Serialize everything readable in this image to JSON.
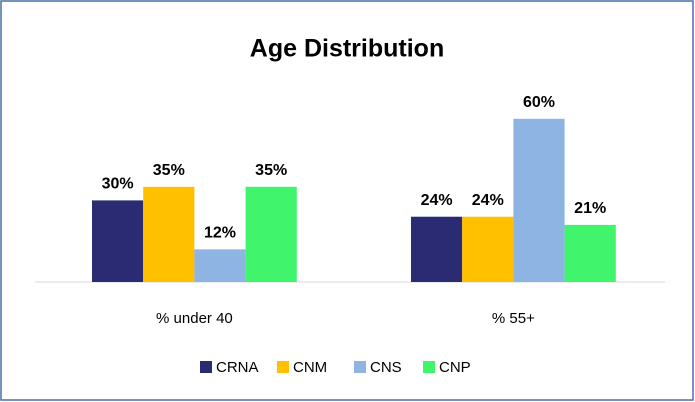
{
  "chart_data": {
    "type": "bar",
    "title": "Age Distribution",
    "categories": [
      "% under 40",
      "% 55+"
    ],
    "series": [
      {
        "name": "CRNA",
        "color": "#2b2b73",
        "values": [
          30,
          24
        ],
        "value_labels": [
          "30%",
          "24%"
        ]
      },
      {
        "name": "CNM",
        "color": "#ffc000",
        "values": [
          35,
          24
        ],
        "value_labels": [
          "35%",
          "24%"
        ]
      },
      {
        "name": "CNS",
        "color": "#8eb4e3",
        "values": [
          12,
          60
        ],
        "value_labels": [
          "12%",
          "60%"
        ]
      },
      {
        "name": "CNP",
        "color": "#40f56c",
        "values": [
          35,
          21
        ],
        "value_labels": [
          "35%",
          "21%"
        ]
      }
    ],
    "legend": "bottom"
  }
}
